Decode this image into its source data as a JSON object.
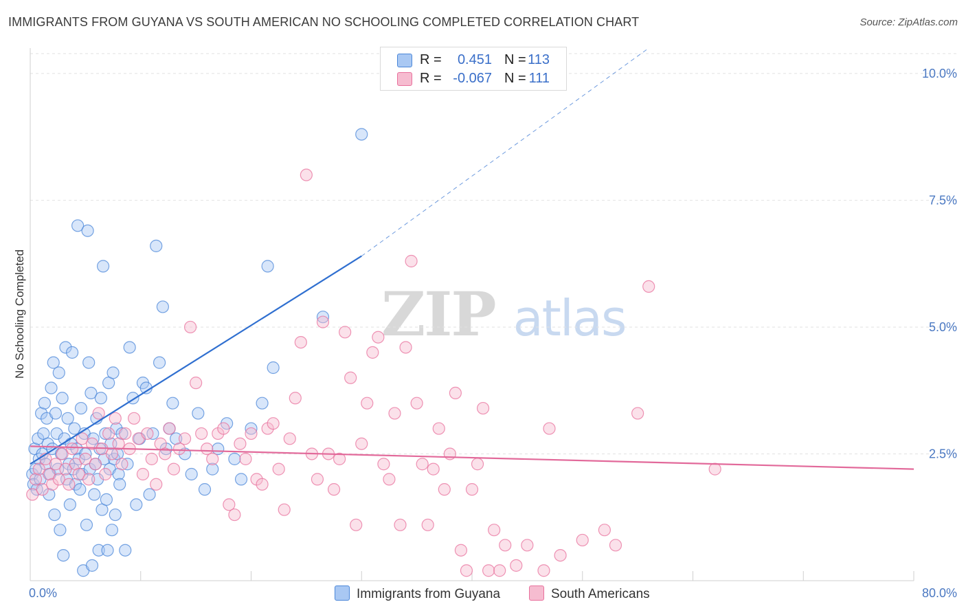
{
  "title": "IMMIGRANTS FROM GUYANA VS SOUTH AMERICAN NO SCHOOLING COMPLETED CORRELATION CHART",
  "source": "Source: ZipAtlas.com",
  "watermark": {
    "zip": "ZIP",
    "atlas": "atlas"
  },
  "legend": {
    "rows": [
      {
        "r_label": "R =",
        "r_value": "0.451",
        "n_label": "N =",
        "n_value": "113",
        "color": "#a9c8f3"
      },
      {
        "r_label": "R =",
        "r_value": "-0.067",
        "n_label": "N =",
        "n_value": "111",
        "color": "#f6bcd0"
      }
    ]
  },
  "bottom_legend": [
    {
      "label": "Immigrants from Guyana",
      "color": "#a9c8f3"
    },
    {
      "label": "South Americans",
      "color": "#f6bcd0"
    }
  ],
  "chart_data": {
    "type": "scatter",
    "xlabel": "",
    "ylabel": "No Schooling Completed",
    "xlim": [
      0,
      80
    ],
    "ylim": [
      0,
      10.5
    ],
    "x_tick_labels": [
      "0.0%",
      "80.0%"
    ],
    "y_ticks": [
      2.5,
      5.0,
      7.5,
      10.0
    ],
    "y_tick_labels": [
      "2.5%",
      "5.0%",
      "7.5%",
      "10.0%"
    ],
    "grid": "horizontal dashed",
    "legend_position": "top-center",
    "colors": {
      "blue": "#4a86d8",
      "blue_fill": "#a9c8f3",
      "pink": "#e8709c",
      "pink_fill": "#f6bcd0",
      "blue_line": "#2f6fd0",
      "pink_line": "#e2699a"
    },
    "series": [
      {
        "name": "Immigrants from Guyana",
        "color": "blue",
        "trend": {
          "x0": 0,
          "y0": 2.3,
          "x1": 30,
          "y1": 6.4,
          "dash_to_x": 56,
          "dash_to_y": 10.5
        },
        "points": [
          [
            0.2,
            2.1
          ],
          [
            0.3,
            1.9
          ],
          [
            0.4,
            2.6
          ],
          [
            0.5,
            2.2
          ],
          [
            0.6,
            1.8
          ],
          [
            0.7,
            2.8
          ],
          [
            0.8,
            2.4
          ],
          [
            0.9,
            2.0
          ],
          [
            1.0,
            3.3
          ],
          [
            1.1,
            2.5
          ],
          [
            1.2,
            2.9
          ],
          [
            1.3,
            3.5
          ],
          [
            1.4,
            2.3
          ],
          [
            1.5,
            3.2
          ],
          [
            1.6,
            2.7
          ],
          [
            1.7,
            1.7
          ],
          [
            1.8,
            2.1
          ],
          [
            1.9,
            3.8
          ],
          [
            2.0,
            2.6
          ],
          [
            2.1,
            4.3
          ],
          [
            2.2,
            1.3
          ],
          [
            2.3,
            3.3
          ],
          [
            2.4,
            2.9
          ],
          [
            2.5,
            2.2
          ],
          [
            2.6,
            4.1
          ],
          [
            2.7,
            1.0
          ],
          [
            2.8,
            2.5
          ],
          [
            2.9,
            3.6
          ],
          [
            3.0,
            0.5
          ],
          [
            3.1,
            2.8
          ],
          [
            3.2,
            4.6
          ],
          [
            3.3,
            2.0
          ],
          [
            3.4,
            3.2
          ],
          [
            3.5,
            2.3
          ],
          [
            3.6,
            1.5
          ],
          [
            3.7,
            2.7
          ],
          [
            3.8,
            4.5
          ],
          [
            3.9,
            2.2
          ],
          [
            4.0,
            3.0
          ],
          [
            4.1,
            1.9
          ],
          [
            4.2,
            2.6
          ],
          [
            4.3,
            7.0
          ],
          [
            4.4,
            2.4
          ],
          [
            4.5,
            1.8
          ],
          [
            4.6,
            3.4
          ],
          [
            4.7,
            2.1
          ],
          [
            4.8,
            0.2
          ],
          [
            4.9,
            2.9
          ],
          [
            5.0,
            2.5
          ],
          [
            5.1,
            1.1
          ],
          [
            5.2,
            6.9
          ],
          [
            5.3,
            4.3
          ],
          [
            5.4,
            2.2
          ],
          [
            5.5,
            3.7
          ],
          [
            5.6,
            0.3
          ],
          [
            5.7,
            2.8
          ],
          [
            5.8,
            1.7
          ],
          [
            5.9,
            2.3
          ],
          [
            6.0,
            3.2
          ],
          [
            6.1,
            2.0
          ],
          [
            6.2,
            0.6
          ],
          [
            6.3,
            2.6
          ],
          [
            6.4,
            3.6
          ],
          [
            6.5,
            1.4
          ],
          [
            6.6,
            6.2
          ],
          [
            6.7,
            2.4
          ],
          [
            6.8,
            2.9
          ],
          [
            6.9,
            1.6
          ],
          [
            7.0,
            0.6
          ],
          [
            7.1,
            3.9
          ],
          [
            7.2,
            2.2
          ],
          [
            7.3,
            2.7
          ],
          [
            7.4,
            1.0
          ],
          [
            7.5,
            4.1
          ],
          [
            7.6,
            2.4
          ],
          [
            7.7,
            1.3
          ],
          [
            7.8,
            3.0
          ],
          [
            7.9,
            2.5
          ],
          [
            8.0,
            2.1
          ],
          [
            8.1,
            1.9
          ],
          [
            8.3,
            2.9
          ],
          [
            8.6,
            0.6
          ],
          [
            8.8,
            2.3
          ],
          [
            9.0,
            4.6
          ],
          [
            9.3,
            3.6
          ],
          [
            9.6,
            1.5
          ],
          [
            9.9,
            2.8
          ],
          [
            10.2,
            3.9
          ],
          [
            10.5,
            3.8
          ],
          [
            10.8,
            1.7
          ],
          [
            11.1,
            2.9
          ],
          [
            11.4,
            6.6
          ],
          [
            11.7,
            4.3
          ],
          [
            12.0,
            5.4
          ],
          [
            12.3,
            2.6
          ],
          [
            12.6,
            3.0
          ],
          [
            12.9,
            3.5
          ],
          [
            13.2,
            2.8
          ],
          [
            14.0,
            2.5
          ],
          [
            14.6,
            2.1
          ],
          [
            15.2,
            3.3
          ],
          [
            15.8,
            1.8
          ],
          [
            16.5,
            2.2
          ],
          [
            17.0,
            2.6
          ],
          [
            17.8,
            3.1
          ],
          [
            18.5,
            2.4
          ],
          [
            19.1,
            2.0
          ],
          [
            20.0,
            3.0
          ],
          [
            21.0,
            3.5
          ],
          [
            21.5,
            6.2
          ],
          [
            22.0,
            4.2
          ],
          [
            26.5,
            5.2
          ],
          [
            30.0,
            8.8
          ]
        ]
      },
      {
        "name": "South Americans",
        "color": "pink",
        "trend": {
          "x0": 0,
          "y0": 2.65,
          "x1": 80,
          "y1": 2.2
        },
        "points": [
          [
            0.2,
            1.7
          ],
          [
            0.5,
            2.0
          ],
          [
            0.8,
            2.2
          ],
          [
            1.1,
            1.8
          ],
          [
            1.4,
            2.4
          ],
          [
            1.7,
            2.1
          ],
          [
            2.0,
            1.9
          ],
          [
            2.3,
            2.3
          ],
          [
            2.6,
            2.0
          ],
          [
            2.9,
            2.5
          ],
          [
            3.2,
            2.2
          ],
          [
            3.5,
            1.9
          ],
          [
            3.8,
            2.6
          ],
          [
            4.1,
            2.3
          ],
          [
            4.4,
            2.1
          ],
          [
            4.7,
            2.8
          ],
          [
            5.0,
            2.4
          ],
          [
            5.3,
            2.0
          ],
          [
            5.6,
            2.7
          ],
          [
            5.9,
            2.3
          ],
          [
            6.2,
            3.3
          ],
          [
            6.5,
            2.6
          ],
          [
            6.8,
            2.1
          ],
          [
            7.1,
            2.9
          ],
          [
            7.4,
            2.5
          ],
          [
            7.7,
            3.2
          ],
          [
            8.0,
            2.7
          ],
          [
            8.3,
            2.3
          ],
          [
            8.6,
            2.9
          ],
          [
            9.0,
            2.6
          ],
          [
            9.4,
            3.2
          ],
          [
            9.8,
            2.8
          ],
          [
            10.2,
            2.1
          ],
          [
            10.6,
            2.9
          ],
          [
            11.0,
            2.4
          ],
          [
            11.4,
            1.9
          ],
          [
            11.8,
            2.7
          ],
          [
            12.2,
            2.5
          ],
          [
            12.6,
            3.0
          ],
          [
            13.0,
            2.2
          ],
          [
            13.5,
            2.6
          ],
          [
            14.0,
            2.8
          ],
          [
            14.5,
            5.0
          ],
          [
            15.0,
            3.9
          ],
          [
            15.5,
            2.9
          ],
          [
            16.0,
            2.6
          ],
          [
            16.5,
            2.4
          ],
          [
            17.0,
            2.9
          ],
          [
            17.5,
            3.0
          ],
          [
            18.0,
            1.5
          ],
          [
            18.5,
            1.3
          ],
          [
            19.0,
            2.7
          ],
          [
            19.5,
            2.4
          ],
          [
            20.0,
            2.9
          ],
          [
            20.5,
            2.0
          ],
          [
            21.0,
            1.9
          ],
          [
            21.5,
            3.0
          ],
          [
            22.0,
            3.1
          ],
          [
            22.5,
            2.2
          ],
          [
            23.0,
            1.4
          ],
          [
            23.5,
            2.8
          ],
          [
            24.0,
            3.6
          ],
          [
            24.5,
            4.7
          ],
          [
            25.0,
            8.0
          ],
          [
            25.5,
            2.5
          ],
          [
            26.0,
            2.0
          ],
          [
            26.5,
            5.1
          ],
          [
            27.0,
            2.5
          ],
          [
            27.5,
            1.8
          ],
          [
            28.0,
            2.4
          ],
          [
            28.5,
            4.9
          ],
          [
            29.0,
            4.0
          ],
          [
            29.5,
            1.1
          ],
          [
            30.0,
            2.7
          ],
          [
            30.5,
            3.5
          ],
          [
            31.0,
            4.5
          ],
          [
            31.5,
            4.8
          ],
          [
            32.0,
            2.3
          ],
          [
            32.5,
            2.0
          ],
          [
            33.0,
            3.3
          ],
          [
            33.5,
            1.1
          ],
          [
            34.0,
            4.6
          ],
          [
            34.5,
            6.3
          ],
          [
            35.0,
            3.5
          ],
          [
            35.5,
            2.3
          ],
          [
            36.0,
            1.1
          ],
          [
            36.5,
            2.2
          ],
          [
            37.0,
            3.0
          ],
          [
            37.5,
            1.8
          ],
          [
            38.0,
            2.5
          ],
          [
            38.5,
            3.7
          ],
          [
            39.0,
            0.6
          ],
          [
            39.5,
            0.2
          ],
          [
            40.0,
            1.8
          ],
          [
            40.5,
            2.3
          ],
          [
            41.0,
            3.4
          ],
          [
            41.5,
            0.2
          ],
          [
            42.0,
            1.0
          ],
          [
            42.5,
            0.2
          ],
          [
            43.0,
            0.7
          ],
          [
            44.0,
            0.3
          ],
          [
            45.0,
            0.7
          ],
          [
            46.5,
            0.2
          ],
          [
            47.0,
            3.0
          ],
          [
            48.0,
            0.5
          ],
          [
            50.0,
            0.8
          ],
          [
            52.0,
            1.0
          ],
          [
            53.0,
            0.7
          ],
          [
            55.0,
            3.3
          ],
          [
            56.0,
            5.8
          ],
          [
            62.0,
            2.2
          ]
        ]
      }
    ]
  }
}
